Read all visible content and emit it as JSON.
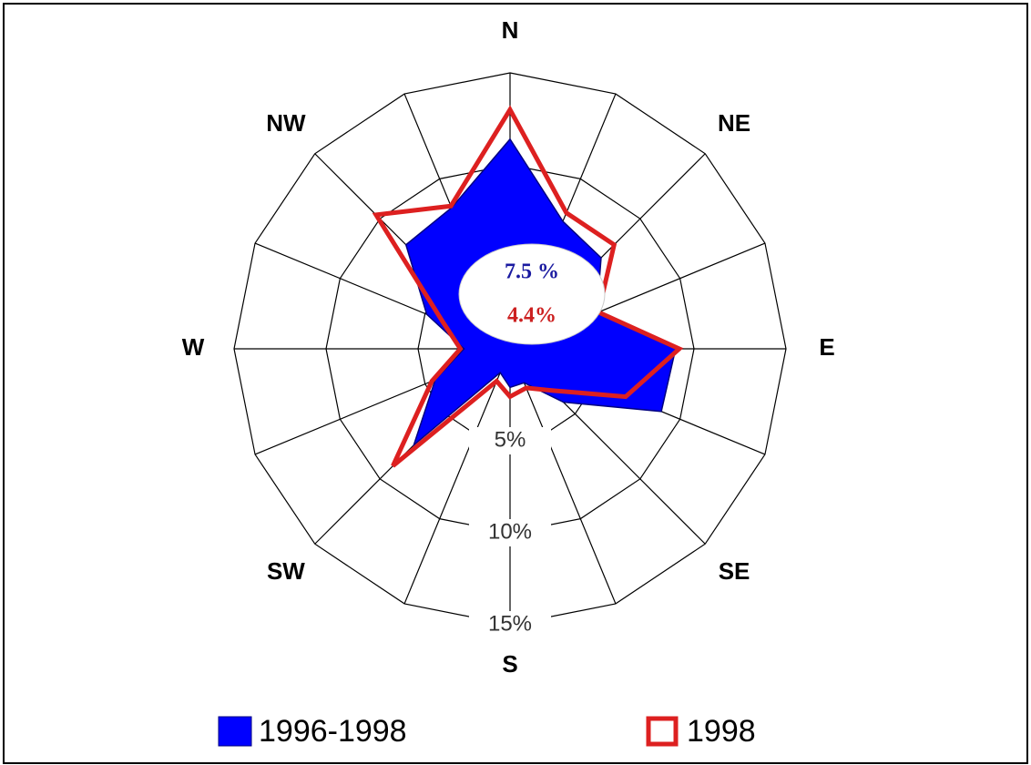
{
  "chart_data": {
    "type": "radar",
    "categories": [
      "N",
      null,
      "NE",
      null,
      "E",
      null,
      "SE",
      null,
      "S",
      null,
      "SW",
      null,
      "W",
      null,
      "NW",
      null
    ],
    "series": [
      {
        "name": "1996-1998",
        "color": "#0000ff",
        "values": [
          11.4,
          7.5,
          7,
          5.1,
          9,
          8.9,
          4.1,
          2,
          2.1,
          1.4,
          7.4,
          4.4,
          2.5,
          4.9,
          8,
          8.3
        ]
      },
      {
        "name": "1998",
        "color": "#dd2020",
        "values": [
          13,
          8,
          8,
          5.2,
          9.2,
          6.8,
          3.2,
          2.3,
          2.6,
          1.9,
          9,
          4.6,
          2.7,
          4,
          10.3,
          8.4
        ]
      }
    ],
    "ylim": [
      0,
      15
    ],
    "yticks": [
      {
        "value": 5,
        "label": "5%"
      },
      {
        "value": 10,
        "label": "10%"
      },
      {
        "value": 15,
        "label": "15%"
      }
    ],
    "annotations": [
      {
        "text": "7.5 %",
        "color": "#1a1aa0"
      },
      {
        "text": "4.4%",
        "color": "#cc2020"
      }
    ]
  }
}
